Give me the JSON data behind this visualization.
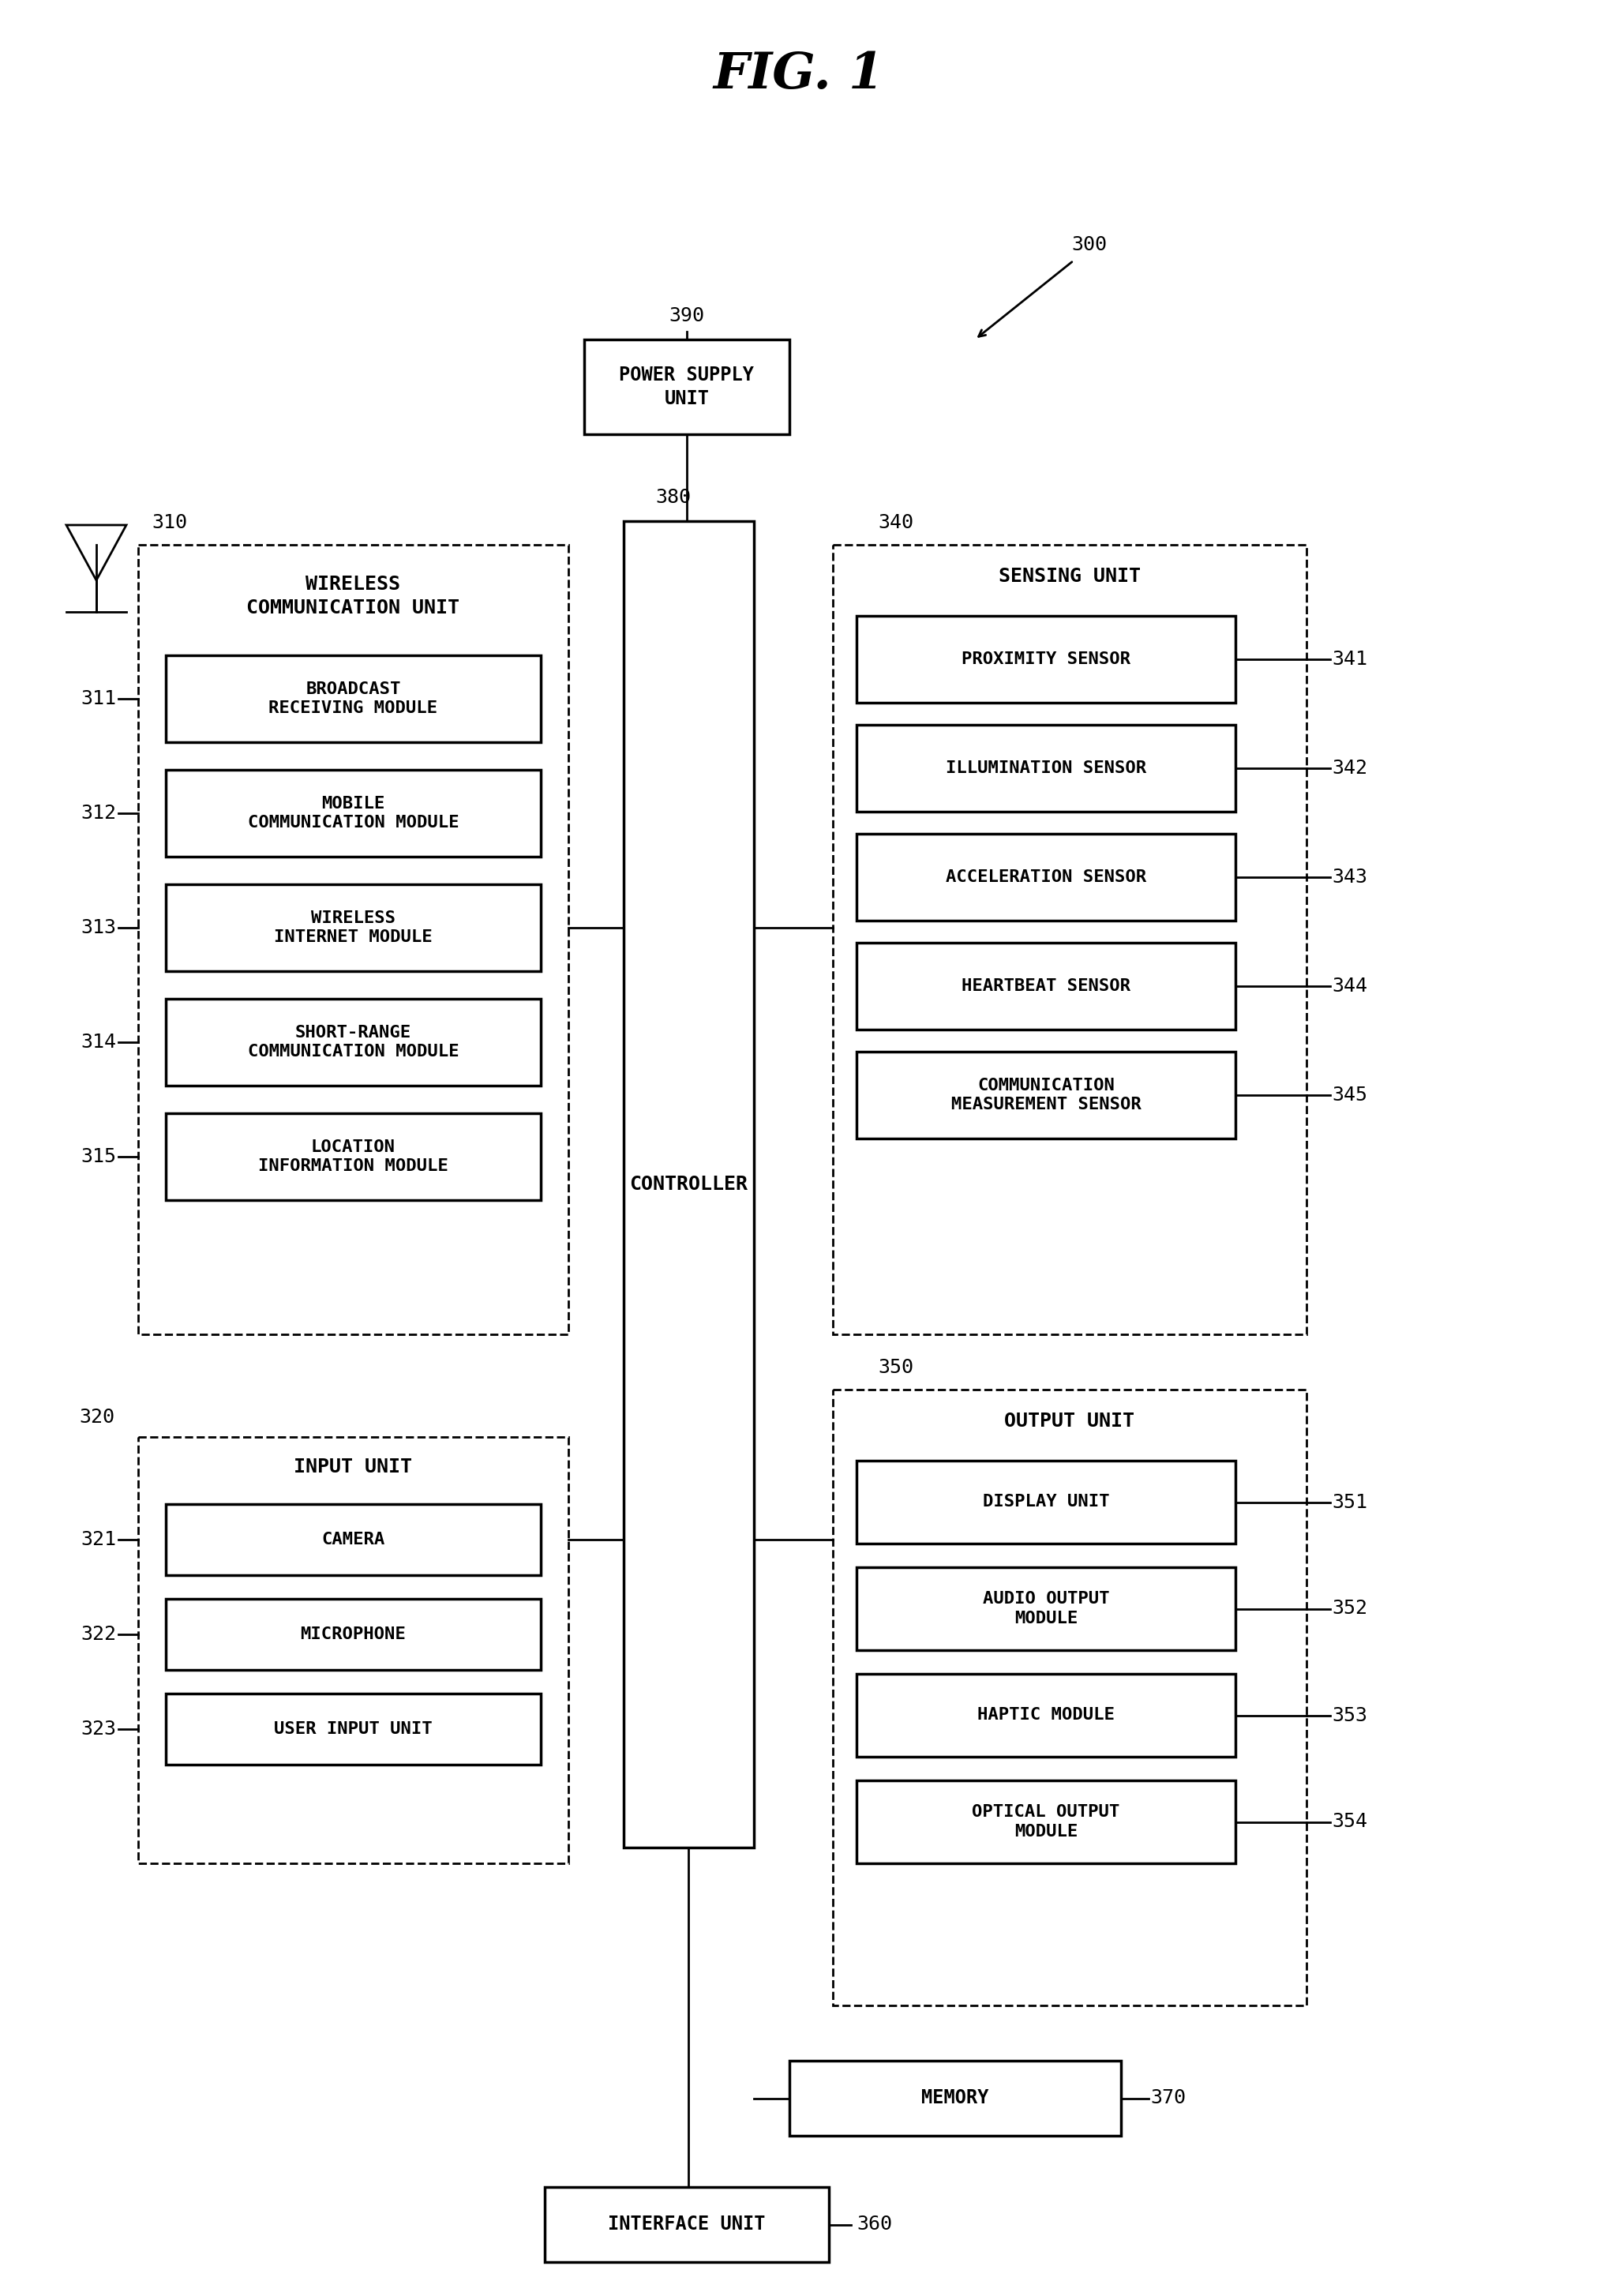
{
  "title": "FIG. 1",
  "bg_color": "#ffffff",
  "fig_label": "300",
  "controller_label": "380",
  "power_supply_label": "390",
  "wireless_group_label": "310",
  "wireless_group_title": "WIRELESS\nCOMMUNICATION UNIT",
  "wireless_modules": [
    {
      "label": "311",
      "text": "BROADCAST\nRECEIVING MODULE"
    },
    {
      "label": "312",
      "text": "MOBILE\nCOMMUNICATION MODULE"
    },
    {
      "label": "313",
      "text": "WIRELESS\nINTERNET MODULE"
    },
    {
      "label": "314",
      "text": "SHORT-RANGE\nCOMMUNICATION MODULE"
    },
    {
      "label": "315",
      "text": "LOCATION\nINFORMATION MODULE"
    }
  ],
  "input_group_label": "320",
  "input_group_title": "INPUT UNIT",
  "input_modules": [
    {
      "label": "321",
      "text": "CAMERA"
    },
    {
      "label": "322",
      "text": "MICROPHONE"
    },
    {
      "label": "323",
      "text": "USER INPUT UNIT"
    }
  ],
  "sensing_group_label": "340",
  "sensing_group_title": "SENSING UNIT",
  "sensing_modules": [
    {
      "label": "341",
      "text": "PROXIMITY SENSOR"
    },
    {
      "label": "342",
      "text": "ILLUMINATION SENSOR"
    },
    {
      "label": "343",
      "text": "ACCELERATION SENSOR"
    },
    {
      "label": "344",
      "text": "HEARTBEAT SENSOR"
    },
    {
      "label": "345",
      "text": "COMMUNICATION\nMEASUREMENT SENSOR"
    }
  ],
  "output_group_label": "350",
  "output_group_title": "OUTPUT UNIT",
  "output_modules": [
    {
      "label": "351",
      "text": "DISPLAY UNIT"
    },
    {
      "label": "352",
      "text": "AUDIO OUTPUT\nMODULE"
    },
    {
      "label": "353",
      "text": "HAPTIC MODULE"
    },
    {
      "label": "354",
      "text": "OPTICAL OUTPUT\nMODULE"
    }
  ],
  "memory_label": "370",
  "memory_text": "MEMORY",
  "interface_label": "360",
  "interface_text": "INTERFACE UNIT",
  "controller_text": "CONTROLLER",
  "power_supply_text": "POWER SUPPLY\nUNIT"
}
